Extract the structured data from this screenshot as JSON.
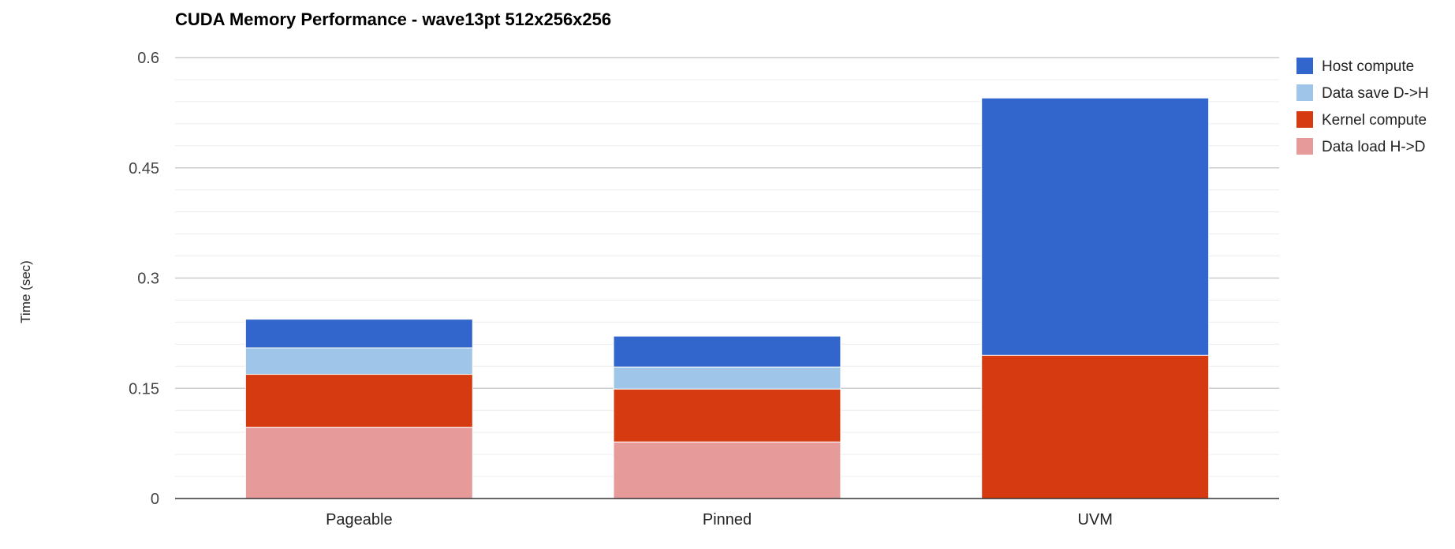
{
  "chart_data": {
    "type": "bar",
    "stacked": true,
    "title": "CUDA Memory Performance - wave13pt 512x256x256",
    "xlabel": "",
    "ylabel": "Time (sec)",
    "ylim": [
      0,
      0.6
    ],
    "yticks": [
      0,
      0.15,
      0.3,
      0.45,
      0.6
    ],
    "ytick_labels": [
      "0",
      "0.15",
      "0.3",
      "0.45",
      "0.6"
    ],
    "grid": true,
    "legend_position": "right",
    "categories": [
      "Pageable",
      "Pinned",
      "UVM"
    ],
    "series": [
      {
        "name": "Data load H->D",
        "color": "#e69a9a",
        "values": [
          0.097,
          0.077,
          0
        ]
      },
      {
        "name": "Kernel compute",
        "color": "#d63a11",
        "values": [
          0.072,
          0.072,
          0.195
        ]
      },
      {
        "name": "Data save D->H",
        "color": "#9fc5e8",
        "values": [
          0.036,
          0.03,
          0
        ]
      },
      {
        "name": "Host compute",
        "color": "#3366cc",
        "values": [
          0.039,
          0.042,
          0.35
        ]
      }
    ],
    "legend_order": [
      "Host compute",
      "Data save D->H",
      "Kernel compute",
      "Data load H->D"
    ]
  }
}
